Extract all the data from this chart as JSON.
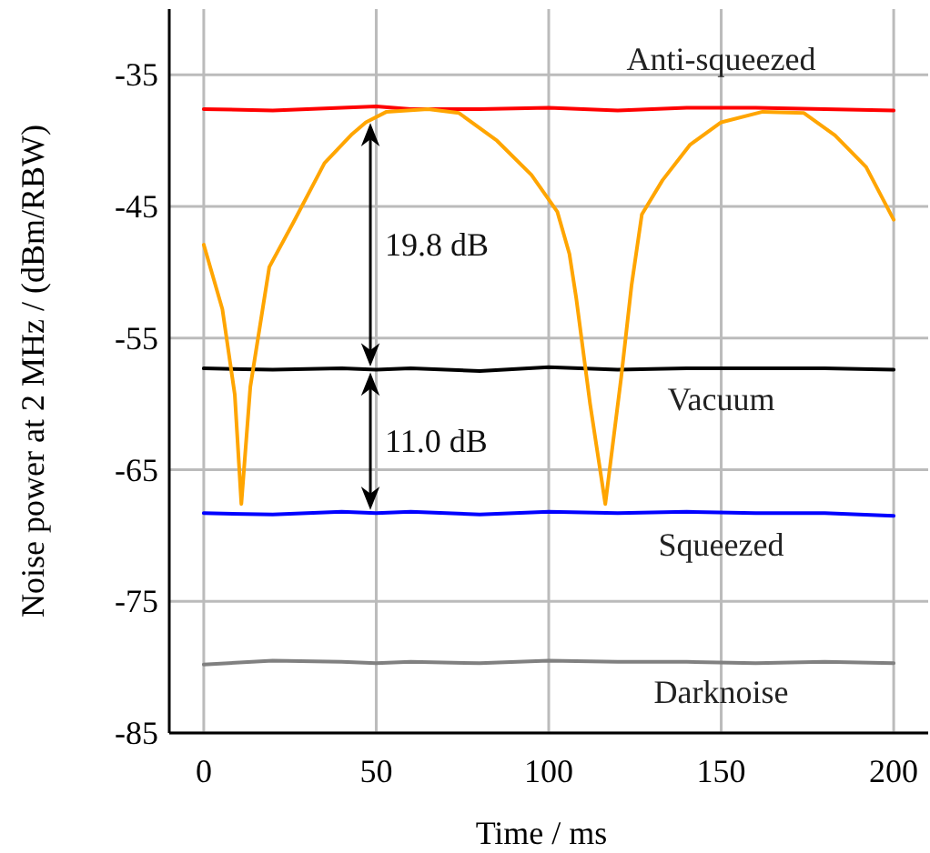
{
  "chart_data": {
    "type": "line",
    "xlabel": "Time / ms",
    "ylabel": "Noise power at 2 MHz / (dBm/RBW)",
    "xlim": [
      -10,
      210
    ],
    "ylim": [
      -85,
      -30
    ],
    "xticks": [
      0,
      50,
      100,
      150,
      200
    ],
    "yticks": [
      -85,
      -75,
      -65,
      -55,
      -45,
      -35
    ],
    "grid": true,
    "marker": "none",
    "line_style": "solid",
    "series": [
      {
        "name": "Anti-squeezed",
        "color": "#ff0000",
        "x": [
          0,
          20,
          40,
          50,
          60,
          80,
          100,
          120,
          140,
          160,
          180,
          200
        ],
        "values": [
          -37.6,
          -37.7,
          -37.5,
          -37.4,
          -37.6,
          -37.6,
          -37.5,
          -37.7,
          -37.5,
          -37.5,
          -37.6,
          -37.7
        ]
      },
      {
        "name": "Vacuum",
        "color": "#000000",
        "x": [
          0,
          20,
          40,
          50,
          60,
          80,
          100,
          120,
          140,
          160,
          180,
          200
        ],
        "values": [
          -57.3,
          -57.4,
          -57.3,
          -57.4,
          -57.3,
          -57.5,
          -57.2,
          -57.4,
          -57.3,
          -57.3,
          -57.3,
          -57.4
        ]
      },
      {
        "name": "Squeezed",
        "color": "#0000ff",
        "x": [
          0,
          20,
          40,
          50,
          60,
          80,
          100,
          120,
          140,
          160,
          180,
          200
        ],
        "values": [
          -68.3,
          -68.4,
          -68.2,
          -68.3,
          -68.2,
          -68.4,
          -68.2,
          -68.3,
          -68.2,
          -68.3,
          -68.3,
          -68.5
        ]
      },
      {
        "name": "Darknoise",
        "color": "#808080",
        "x": [
          0,
          20,
          40,
          50,
          60,
          80,
          100,
          120,
          140,
          160,
          180,
          200
        ],
        "values": [
          -79.8,
          -79.5,
          -79.6,
          -79.7,
          -79.6,
          -79.7,
          -79.5,
          -79.6,
          -79.6,
          -79.7,
          -79.6,
          -79.7
        ]
      },
      {
        "color": "#ffa500",
        "x": [
          0,
          5.4,
          9,
          10.9,
          13.5,
          19,
          26,
          35,
          43,
          47,
          53,
          65,
          74,
          85,
          95,
          102.5,
          106,
          108,
          112,
          116.4,
          121,
          124,
          127,
          133,
          141,
          150,
          162,
          174,
          183,
          192,
          200
        ],
        "values": [
          -47.9,
          -52.8,
          -59.3,
          -67.6,
          -58.7,
          -49.6,
          -46.2,
          -41.7,
          -39.5,
          -38.6,
          -37.8,
          -37.6,
          -37.9,
          -40,
          -42.6,
          -45.4,
          -48.6,
          -52,
          -60,
          -67.6,
          -58,
          -51,
          -45.6,
          -43,
          -40.3,
          -38.6,
          -37.8,
          -37.9,
          -39.6,
          -42,
          -46
        ]
      }
    ],
    "annotations": [
      "19.8 dB",
      "11.0 dB"
    ]
  }
}
